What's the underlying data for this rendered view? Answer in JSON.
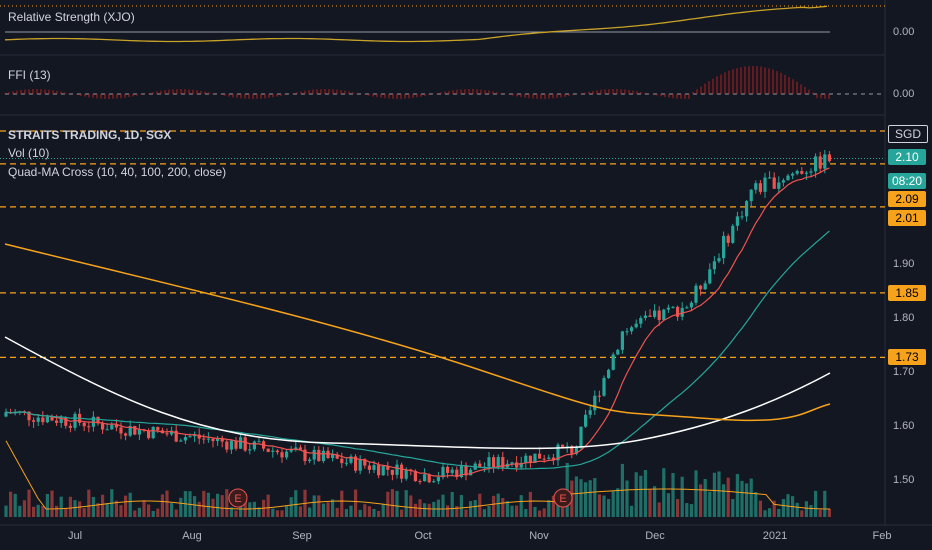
{
  "chart_data": {
    "type": "candlestick",
    "symbol": "STRAITS TRADING, 1D, SGX",
    "currency": "SGD",
    "indicators_panel": {
      "rs": {
        "title": "Relative Strength (XJO)",
        "value_label": "0.00"
      },
      "ffi": {
        "title": "FFI (13)",
        "value_label": "0.00"
      }
    },
    "legend": {
      "vol": "Vol (10)",
      "quad": "Quad-MA Cross (10, 40, 100, 200, close)"
    },
    "price_axis": {
      "ticks": [
        "1.90",
        "1.80",
        "1.70",
        "1.60",
        "1.50"
      ],
      "values": [
        1.9,
        1.8,
        1.7,
        1.6,
        1.5
      ]
    },
    "levels": [
      {
        "label": "1.85",
        "value": 1.85
      },
      {
        "label": "1.73",
        "value": 1.73
      },
      {
        "label": "2.01",
        "value": 2.01
      },
      {
        "label": "2.09",
        "value": 2.09
      }
    ],
    "last_price": {
      "label": "2.10",
      "countdown": "08:20"
    },
    "x_ticks": [
      "Jul",
      "Aug",
      "Sep",
      "Oct",
      "Nov",
      "Dec",
      "2021",
      "Feb"
    ],
    "earnings_marker": "E",
    "colors": {
      "up": "#26a69a",
      "down": "#ef5350",
      "level": "#f7a21b",
      "ma10": "#ef5350",
      "ma40": "#26a69a",
      "ma100": "#ffffff",
      "ma200": "#f7a21b",
      "rs": "#c9a227",
      "ffi": "#b71c1c"
    }
  }
}
